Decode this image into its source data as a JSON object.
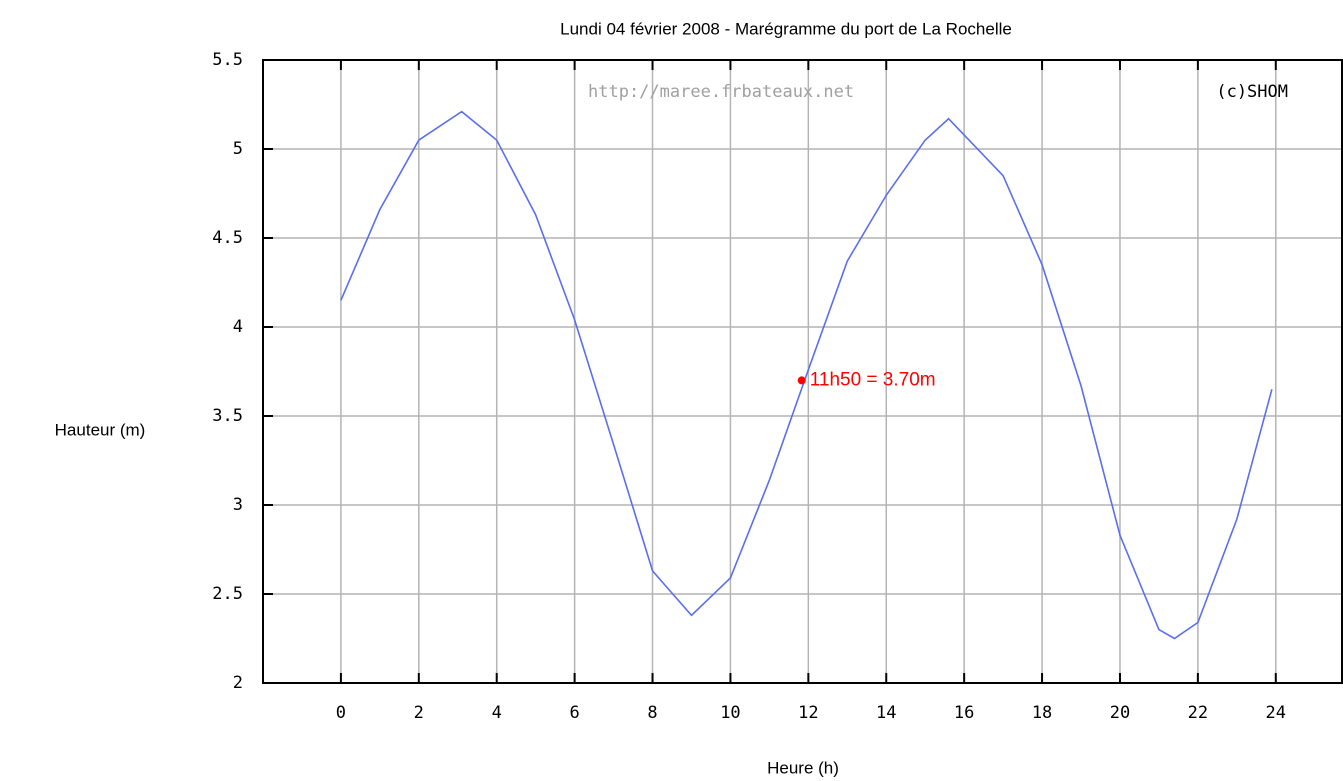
{
  "chart_data": {
    "type": "line",
    "title": "Lundi 04 février 2008 - Marégramme du port de La Rochelle",
    "xlabel": "Heure (h)",
    "ylabel": "Hauteur (m)",
    "watermarks": [
      "http://maree.frbateaux.net",
      "(c)SHOM"
    ],
    "x": [
      0,
      1,
      2,
      3.1,
      4,
      5,
      6,
      7,
      8,
      9,
      10,
      11,
      12,
      13,
      14,
      15,
      15.6,
      17,
      18,
      19,
      20,
      21,
      21.4,
      22,
      23,
      23.9
    ],
    "series": [
      {
        "name": "Hauteur",
        "color": "#5a6ef0",
        "values": [
          4.15,
          4.66,
          5.05,
          5.21,
          5.05,
          4.63,
          4.04,
          3.34,
          2.63,
          2.38,
          2.59,
          3.14,
          3.76,
          4.37,
          4.74,
          5.05,
          5.17,
          4.85,
          4.35,
          3.67,
          2.83,
          2.3,
          2.25,
          2.34,
          2.92,
          3.65
        ]
      }
    ],
    "annotations": [
      {
        "text": "11h50 = 3.70m",
        "x": 11.83,
        "y": 3.7,
        "color": "#ff0000"
      }
    ],
    "xlim": [
      -2,
      25.7
    ],
    "xticks": [
      0,
      2,
      4,
      6,
      8,
      10,
      12,
      14,
      16,
      18,
      20,
      22,
      24
    ],
    "ylim": [
      2,
      5.5
    ],
    "yticks": [
      2,
      2.5,
      3,
      3.5,
      4,
      4.5,
      5,
      5.5
    ],
    "grid": true
  }
}
